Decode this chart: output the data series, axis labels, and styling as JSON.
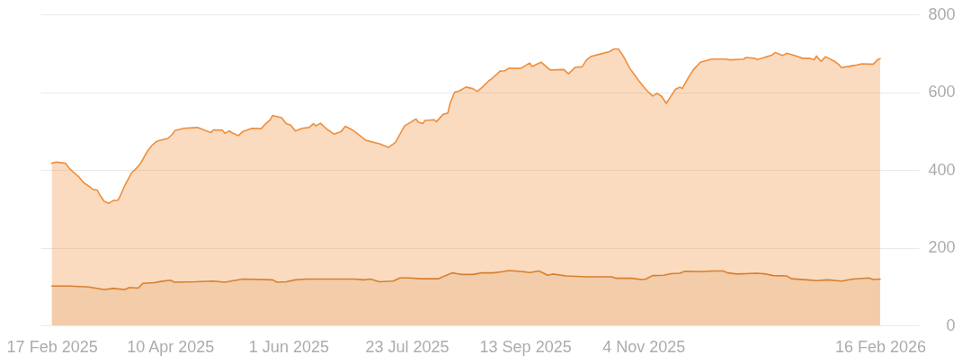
{
  "chart_data": {
    "type": "area",
    "xlim": [
      "2025-02-12",
      "2026-03-05"
    ],
    "xticks": [
      {
        "value": "2025-02-17",
        "label": "17 Feb 2025"
      },
      {
        "value": "2025-04-10",
        "label": "10 Apr 2025"
      },
      {
        "value": "2025-06-01",
        "label": "1 Jun 2025"
      },
      {
        "value": "2025-07-23",
        "label": "23 Jul 2025"
      },
      {
        "value": "2025-09-13",
        "label": "13 Sep 2025"
      },
      {
        "value": "2025-11-04",
        "label": "4 Nov 2025"
      },
      {
        "value": "2026-02-16",
        "label": "16 Feb 2026"
      }
    ],
    "ylim": [
      0,
      800
    ],
    "yticks": [
      0,
      200,
      400,
      600,
      800
    ],
    "grid": "y",
    "series": [
      {
        "color": "#ef8e3c",
        "x": [
          "2025-02-17",
          "2025-02-19",
          "2025-02-23",
          "2025-02-25",
          "2025-03-01",
          "2025-03-03",
          "2025-03-05",
          "2025-03-07",
          "2025-03-09",
          "2025-03-10",
          "2025-03-12",
          "2025-03-14",
          "2025-03-16",
          "2025-03-18",
          "2025-03-19",
          "2025-03-21",
          "2025-03-24",
          "2025-03-26",
          "2025-03-28",
          "2025-03-31",
          "2025-04-02",
          "2025-04-04",
          "2025-04-05",
          "2025-04-09",
          "2025-04-11",
          "2025-04-12",
          "2025-04-16",
          "2025-04-22",
          "2025-04-26",
          "2025-04-28",
          "2025-04-29",
          "2025-05-03",
          "2025-05-04",
          "2025-05-06",
          "2025-05-07",
          "2025-05-10",
          "2025-05-12",
          "2025-05-16",
          "2025-05-20",
          "2025-05-22",
          "2025-05-24",
          "2025-05-25",
          "2025-05-29",
          "2025-05-31",
          "2025-06-02",
          "2025-06-04",
          "2025-06-07",
          "2025-06-10",
          "2025-06-12",
          "2025-06-13",
          "2025-06-15",
          "2025-06-18",
          "2025-06-21",
          "2025-06-24",
          "2025-06-26",
          "2025-06-29",
          "2025-07-02",
          "2025-07-05",
          "2025-07-11",
          "2025-07-15",
          "2025-07-18",
          "2025-07-22",
          "2025-07-27",
          "2025-07-28",
          "2025-07-30",
          "2025-07-31",
          "2025-08-04",
          "2025-08-05",
          "2025-08-08",
          "2025-08-10",
          "2025-08-11",
          "2025-08-13",
          "2025-08-15",
          "2025-08-18",
          "2025-08-21",
          "2025-08-23",
          "2025-08-25",
          "2025-08-28",
          "2025-08-29",
          "2025-09-02",
          "2025-09-04",
          "2025-09-06",
          "2025-09-11",
          "2025-09-15",
          "2025-09-16",
          "2025-09-20",
          "2025-09-24",
          "2025-09-30",
          "2025-10-02",
          "2025-10-05",
          "2025-10-08",
          "2025-10-10",
          "2025-10-12",
          "2025-10-16",
          "2025-10-20",
          "2025-10-22",
          "2025-10-24",
          "2025-10-26",
          "2025-10-29",
          "2025-11-02",
          "2025-11-05",
          "2025-11-08",
          "2025-11-10",
          "2025-11-12",
          "2025-11-14",
          "2025-11-17",
          "2025-11-18",
          "2025-11-20",
          "2025-11-21",
          "2025-11-24",
          "2025-11-26",
          "2025-11-29",
          "2025-12-04",
          "2025-12-10",
          "2025-12-12",
          "2025-12-18",
          "2025-12-19",
          "2025-12-23",
          "2025-12-24",
          "2025-12-28",
          "2025-12-30",
          "2026-01-01",
          "2026-01-04",
          "2026-01-06",
          "2026-01-10",
          "2026-01-13",
          "2026-01-16",
          "2026-01-18",
          "2026-01-19",
          "2026-01-21",
          "2026-01-23",
          "2026-01-27",
          "2026-01-29",
          "2026-01-30",
          "2026-02-01",
          "2026-02-05",
          "2026-02-08",
          "2026-02-12",
          "2026-02-13",
          "2026-02-15",
          "2026-02-16"
        ],
        "values": [
          417,
          420,
          417,
          402,
          381,
          367,
          359,
          350,
          348,
          336,
          319,
          314,
          321,
          322,
          332,
          359,
          392,
          403,
          417,
          448,
          463,
          473,
          475,
          481,
          492,
          501,
          507,
          509,
          500,
          496,
          503,
          502,
          494,
          500,
          496,
          488,
          499,
          507,
          506,
          519,
          529,
          540,
          534,
          519,
          515,
          500,
          507,
          509,
          519,
          513,
          520,
          504,
          492,
          498,
          512,
          503,
          490,
          476,
          467,
          458,
          471,
          513,
          531,
          523,
          519,
          527,
          529,
          524,
          543,
          546,
          571,
          600,
          603,
          613,
          609,
          602,
          612,
          629,
          633,
          654,
          655,
          662,
          661,
          675,
          666,
          677,
          657,
          658,
          647,
          664,
          665,
          683,
          692,
          698,
          704,
          711,
          711,
          694,
          661,
          629,
          607,
          590,
          597,
          589,
          571,
          598,
          607,
          613,
          609,
          640,
          658,
          677,
          685,
          685,
          683,
          685,
          689,
          687,
          684,
          691,
          694,
          702,
          694,
          700,
          693,
          687,
          687,
          683,
          693,
          679,
          691,
          679,
          670,
          663,
          665,
          669,
          673,
          672,
          672,
          684,
          686
        ]
      },
      {
        "color": "#d5802f",
        "x": [
          "2025-02-17",
          "2025-02-25",
          "2025-03-05",
          "2025-03-12",
          "2025-03-16",
          "2025-03-21",
          "2025-03-23",
          "2025-03-27",
          "2025-03-29",
          "2025-04-03",
          "2025-04-06",
          "2025-04-10",
          "2025-04-12",
          "2025-04-21",
          "2025-04-29",
          "2025-05-04",
          "2025-05-12",
          "2025-05-25",
          "2025-05-27",
          "2025-05-31",
          "2025-06-04",
          "2025-06-09",
          "2025-06-22",
          "2025-06-30",
          "2025-07-04",
          "2025-07-07",
          "2025-07-11",
          "2025-07-17",
          "2025-07-20",
          "2025-07-24",
          "2025-07-29",
          "2025-08-06",
          "2025-08-09",
          "2025-08-12",
          "2025-08-16",
          "2025-08-21",
          "2025-08-25",
          "2025-08-30",
          "2025-09-03",
          "2025-09-06",
          "2025-09-12",
          "2025-09-15",
          "2025-09-19",
          "2025-09-23",
          "2025-09-25",
          "2025-10-01",
          "2025-10-10",
          "2025-10-21",
          "2025-10-23",
          "2025-10-30",
          "2025-11-03",
          "2025-11-05",
          "2025-11-08",
          "2025-11-13",
          "2025-11-16",
          "2025-11-20",
          "2025-11-22",
          "2025-11-29",
          "2025-12-05",
          "2025-12-09",
          "2025-12-11",
          "2025-12-15",
          "2025-12-24",
          "2025-12-28",
          "2025-12-31",
          "2026-01-06",
          "2026-01-08",
          "2026-01-15",
          "2026-01-19",
          "2026-01-24",
          "2026-01-30",
          "2026-02-04",
          "2026-02-11",
          "2026-02-13",
          "2026-02-16"
        ],
        "values": [
          101,
          101,
          99,
          92,
          95,
          92,
          97,
          96,
          108,
          110,
          113,
          116,
          111,
          112,
          114,
          111,
          119,
          117,
          111,
          112,
          117,
          119,
          119,
          119,
          117,
          119,
          112,
          114,
          122,
          122,
          120,
          120,
          128,
          135,
          131,
          131,
          135,
          135,
          138,
          141,
          138,
          136,
          140,
          129,
          132,
          127,
          125,
          125,
          121,
          121,
          118,
          119,
          128,
          129,
          133,
          134,
          139,
          138,
          140,
          140,
          135,
          132,
          134,
          132,
          128,
          127,
          120,
          117,
          115,
          117,
          114,
          119,
          122,
          118,
          119
        ]
      }
    ]
  }
}
